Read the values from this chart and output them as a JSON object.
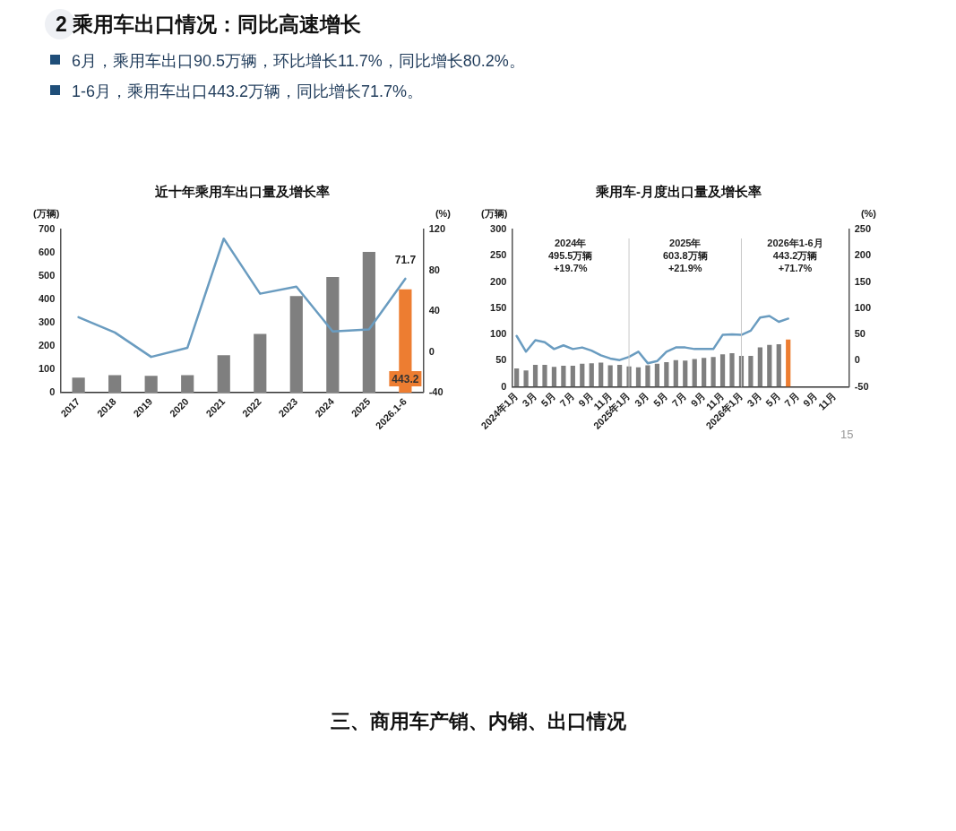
{
  "chart_data": [
    {
      "type": "other",
      "title": "2 乘用车出口情况：同比高速增长",
      "annotations": [
        "6月，乘用车出口90.5万辆，环比增长11.7%，同比增长80.2%。",
        "1-6月，乘用车出口443.2万辆，同比增长71.7%。"
      ]
    },
    {
      "type": "bar",
      "title": "近十年乘用车出口量及增长率",
      "ylabel": "(万辆)",
      "y2label": "(%)",
      "categories": [
        "2017",
        "2018",
        "2019",
        "2020",
        "2021",
        "2022",
        "2023",
        "2024",
        "2025",
        "2026.1-6"
      ],
      "ylim": [
        0,
        700
      ],
      "yticks": [
        0,
        100,
        200,
        300,
        400,
        500,
        600,
        700
      ],
      "y2lim": [
        -40,
        120
      ],
      "y2ticks": [
        -40,
        0,
        40,
        80,
        120
      ],
      "series": [
        {
          "type": "bar",
          "colors": [
            "#7f7f7f",
            "#7f7f7f",
            "#7f7f7f",
            "#7f7f7f",
            "#7f7f7f",
            "#7f7f7f",
            "#7f7f7f",
            "#7f7f7f",
            "#7f7f7f",
            "#ed7d31"
          ],
          "values": [
            64,
            75,
            72,
            75,
            160,
            252,
            414,
            496,
            604,
            443.2
          ],
          "value_labels": [
            null,
            null,
            null,
            null,
            null,
            null,
            null,
            null,
            null,
            "443.2"
          ]
        },
        {
          "type": "line",
          "axis": "y2",
          "color": "#6a9cc0",
          "values": [
            34,
            19,
            -5,
            4,
            111,
            57,
            64,
            20,
            22,
            71.7
          ],
          "value_labels": [
            null,
            null,
            null,
            null,
            null,
            null,
            null,
            null,
            null,
            "71.7"
          ]
        }
      ]
    },
    {
      "type": "bar",
      "title": "乘用车-月度出口量及增长率",
      "ylabel": "(万辆)",
      "y2label": "(%)",
      "categories": [
        "2024年1月",
        null,
        "3月",
        null,
        "5月",
        null,
        "7月",
        null,
        "9月",
        null,
        "11月",
        null,
        "2025年1月",
        null,
        "3月",
        null,
        "5月",
        null,
        "7月",
        null,
        "9月",
        null,
        "11月",
        null,
        "2026年1月",
        null,
        "3月",
        null,
        "5月",
        null,
        "7月",
        null,
        "9月",
        null,
        "11月",
        null
      ],
      "ylim": [
        0,
        300
      ],
      "yticks": [
        0,
        50,
        100,
        150,
        200,
        250,
        300
      ],
      "y2lim": [
        -50,
        250
      ],
      "y2ticks": [
        -50,
        0,
        50,
        100,
        150,
        200,
        250
      ],
      "ref_lines": [
        {
          "axis": "x",
          "value": "2025年1月",
          "color": "#c8c8c8"
        },
        {
          "axis": "x",
          "value": "2026年1月",
          "color": "#c8c8c8"
        }
      ],
      "annotations": [
        "2024年\n495.5万辆\n+19.7%",
        "2025年\n603.8万辆\n+21.9%",
        "2026年1-6月\n443.2万辆\n+71.7%"
      ],
      "series": [
        {
          "type": "bar",
          "colors": [
            "#7f7f7f",
            "#7f7f7f",
            "#7f7f7f",
            "#7f7f7f",
            "#7f7f7f",
            "#7f7f7f",
            "#7f7f7f",
            "#7f7f7f",
            "#7f7f7f",
            "#7f7f7f",
            "#7f7f7f",
            "#7f7f7f",
            "#7f7f7f",
            "#7f7f7f",
            "#7f7f7f",
            "#7f7f7f",
            "#7f7f7f",
            "#7f7f7f",
            "#7f7f7f",
            "#7f7f7f",
            "#7f7f7f",
            "#7f7f7f",
            "#7f7f7f",
            "#7f7f7f",
            "#7f7f7f",
            "#7f7f7f",
            "#7f7f7f",
            "#7f7f7f",
            "#7f7f7f",
            "#ed7d31",
            "#7f7f7f",
            "#7f7f7f",
            "#7f7f7f",
            "#7f7f7f",
            "#7f7f7f",
            "#7f7f7f"
          ],
          "values": [
            35,
            31,
            42,
            42,
            38,
            40,
            40,
            44,
            45,
            46,
            41,
            42,
            39,
            37,
            41,
            44,
            47,
            51,
            50,
            53,
            55,
            57,
            62,
            64,
            59,
            59,
            75,
            80,
            81,
            90,
            null,
            null,
            null,
            null,
            null,
            null
          ]
        },
        {
          "type": "line",
          "axis": "y2",
          "color": "#6a9cc0",
          "values": [
            47,
            17,
            39,
            35,
            22,
            29,
            22,
            25,
            19,
            10,
            4,
            1,
            7,
            17,
            -5,
            -1,
            17,
            25,
            25,
            22,
            22,
            22,
            49,
            50,
            49,
            57,
            82,
            85,
            74,
            80,
            null,
            null,
            null,
            null,
            null,
            null
          ]
        }
      ]
    },
    {
      "type": "other",
      "title": "三、商用车产销、内销、出口情况",
      "annotations": [
        "15"
      ]
    }
  ]
}
